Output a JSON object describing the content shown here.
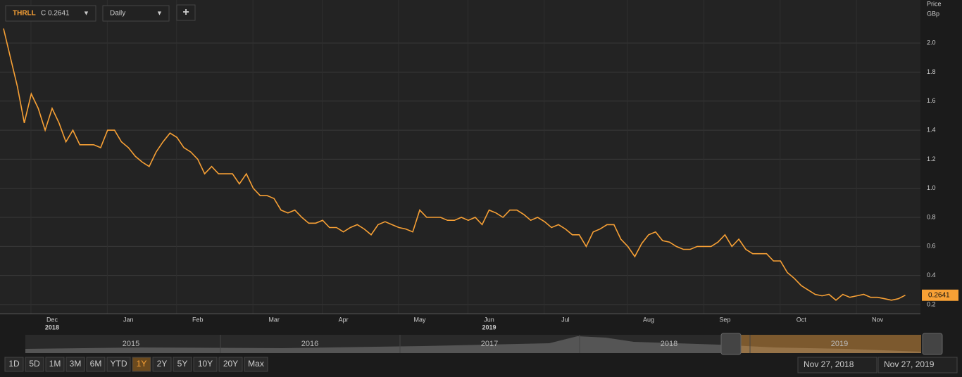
{
  "ui": {
    "symbol": "THRLL",
    "close": "C 0.2641",
    "interval": "Daily",
    "add": "+",
    "axis_title": "Price",
    "axis_unit": "GBp",
    "last_label": "0.2641",
    "navigator_years": [
      "2015",
      "2016",
      "2017",
      "2018",
      "2019"
    ],
    "ranges": [
      "1D",
      "5D",
      "1M",
      "3M",
      "6M",
      "YTD",
      "1Y",
      "2Y",
      "5Y",
      "10Y",
      "20Y",
      "Max"
    ],
    "active_range": "1Y",
    "date_from": "Nov 27, 2018",
    "date_to": "Nov 27, 2019"
  },
  "chart_data": {
    "type": "line",
    "categories": [
      null,
      null,
      null,
      null,
      null,
      null,
      null,
      "Dec",
      null,
      null,
      null,
      null,
      null,
      null,
      null,
      null,
      null,
      null,
      "Jan",
      null,
      null,
      null,
      null,
      null,
      null,
      null,
      null,
      null,
      "Feb",
      null,
      null,
      null,
      null,
      null,
      null,
      null,
      null,
      null,
      null,
      "Mar",
      null,
      null,
      null,
      null,
      null,
      null,
      null,
      null,
      null,
      "Apr",
      null,
      null,
      null,
      null,
      null,
      null,
      null,
      null,
      null,
      null,
      "May",
      null,
      null,
      null,
      null,
      null,
      null,
      null,
      null,
      null,
      "Jun",
      null,
      null,
      null,
      null,
      null,
      null,
      null,
      null,
      null,
      null,
      "Jul",
      null,
      null,
      null,
      null,
      null,
      null,
      null,
      null,
      null,
      null,
      null,
      "Aug",
      null,
      null,
      null,
      null,
      null,
      null,
      null,
      null,
      null,
      null,
      "Sep",
      null,
      null,
      null,
      null,
      null,
      null,
      null,
      null,
      null,
      null,
      "Oct",
      null,
      null,
      null,
      null,
      null,
      null,
      null,
      null,
      null,
      null,
      "Nov",
      null,
      null,
      null,
      null
    ],
    "x_year_labels": [
      {
        "index": 7,
        "label": "2018"
      },
      {
        "index": 70,
        "label": "2019"
      }
    ],
    "series": [
      {
        "name": "THRLL",
        "color": "#f7a035",
        "values": [
          2.1,
          1.9,
          1.7,
          1.45,
          1.65,
          1.55,
          1.4,
          1.55,
          1.45,
          1.32,
          1.4,
          1.3,
          1.3,
          1.3,
          1.28,
          1.4,
          1.4,
          1.32,
          1.28,
          1.22,
          1.18,
          1.15,
          1.25,
          1.32,
          1.38,
          1.35,
          1.28,
          1.25,
          1.2,
          1.1,
          1.15,
          1.1,
          1.1,
          1.1,
          1.03,
          1.1,
          1.0,
          0.95,
          0.95,
          0.93,
          0.85,
          0.83,
          0.85,
          0.8,
          0.76,
          0.76,
          0.78,
          0.73,
          0.73,
          0.7,
          0.73,
          0.75,
          0.72,
          0.68,
          0.75,
          0.77,
          0.75,
          0.73,
          0.72,
          0.7,
          0.85,
          0.8,
          0.8,
          0.8,
          0.78,
          0.78,
          0.8,
          0.78,
          0.8,
          0.75,
          0.85,
          0.83,
          0.8,
          0.85,
          0.85,
          0.82,
          0.78,
          0.8,
          0.77,
          0.73,
          0.75,
          0.72,
          0.68,
          0.68,
          0.6,
          0.7,
          0.72,
          0.75,
          0.75,
          0.65,
          0.6,
          0.53,
          0.62,
          0.68,
          0.7,
          0.64,
          0.63,
          0.6,
          0.58,
          0.58,
          0.6,
          0.6,
          0.6,
          0.63,
          0.68,
          0.6,
          0.65,
          0.58,
          0.55,
          0.55,
          0.55,
          0.5,
          0.5,
          0.42,
          0.38,
          0.33,
          0.3,
          0.27,
          0.26,
          0.27,
          0.23,
          0.27,
          0.25,
          0.26,
          0.27,
          0.25,
          0.25,
          0.24,
          0.23,
          0.24,
          0.2641
        ]
      }
    ],
    "ylim": [
      0.137,
      2.296
    ],
    "yticks": [
      0.2,
      0.4,
      0.6,
      0.8,
      {
        "value": 1,
        "label": "1.0"
      },
      1.2,
      1.4,
      1.6,
      1.8,
      {
        "value": 2,
        "label": "2.0"
      }
    ],
    "grid": true
  }
}
